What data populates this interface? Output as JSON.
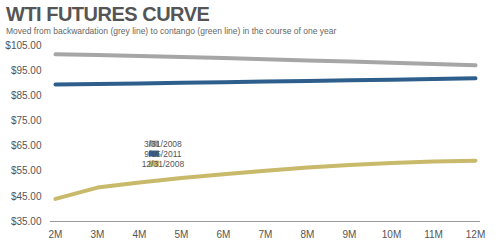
{
  "chart_data": {
    "type": "line",
    "title": "WTI FUTURES CURVE",
    "subtitle": "Moved from backwardation (grey line) to contango (green line) in the course of one year",
    "categories": [
      "2M",
      "3M",
      "4M",
      "5M",
      "6M",
      "7M",
      "8M",
      "9M",
      "10M",
      "11M",
      "12M"
    ],
    "series": [
      {
        "name": "3/31/2008",
        "color": "#a6a6a6",
        "values": [
          101.5,
          101.2,
          100.8,
          100.4,
          100.0,
          99.5,
          99.0,
          98.6,
          98.1,
          97.6,
          97.1
        ]
      },
      {
        "name": "9/15/2011",
        "color": "#2e5f8c",
        "values": [
          89.5,
          89.7,
          89.9,
          90.2,
          90.4,
          90.7,
          90.9,
          91.2,
          91.4,
          91.7,
          92.0
        ]
      },
      {
        "name": "12/31/2008",
        "color": "#c9b96b",
        "values": [
          44.0,
          48.5,
          50.5,
          52.3,
          53.8,
          55.2,
          56.5,
          57.5,
          58.3,
          58.9,
          59.2
        ]
      }
    ],
    "ylim": [
      35,
      105
    ],
    "yticks": [
      {
        "value": 35,
        "label": "$35.00"
      },
      {
        "value": 45,
        "label": "$45.00"
      },
      {
        "value": 55,
        "label": "$55.00"
      },
      {
        "value": 65,
        "label": "$65.00"
      },
      {
        "value": 75,
        "label": "$75.00"
      },
      {
        "value": 85,
        "label": "$85.00"
      },
      {
        "value": 95,
        "label": "$95.00"
      },
      {
        "value": 105,
        "label": "$105.00"
      }
    ],
    "grid": false,
    "legend": "center"
  }
}
